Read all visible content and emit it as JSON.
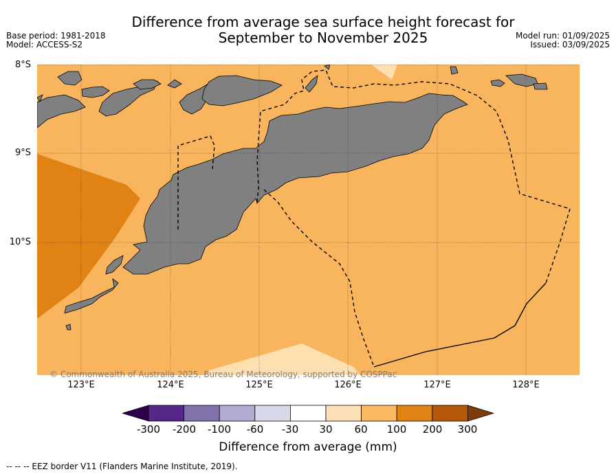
{
  "title": {
    "line1": "Difference from average sea surface height forecast for",
    "line2": "September to November 2025"
  },
  "meta_left": {
    "base_period": "Base period: 1981-2018",
    "model": "Model: ACCESS-S2"
  },
  "meta_right": {
    "model_run": "Model run: 01/09/2025",
    "issued": "Issued: 03/09/2025"
  },
  "map": {
    "lat_labels": [
      "8°S",
      "9°S",
      "10°S"
    ],
    "lon_labels": [
      "123°E",
      "124°E",
      "125°E",
      "126°E",
      "127°E",
      "128°E"
    ],
    "copyright": "© Commonwealth of Australia 2025, Bureau of Meteorology, supported by COSPPac",
    "colors": {
      "band_60_100": "#f9b45e",
      "band_100_200": "#e08214",
      "band_30_60": "#fedfb0",
      "land": "#808080",
      "eez_line": "#000000"
    }
  },
  "colorbar": {
    "ticks": [
      "-300",
      "-200",
      "-100",
      "-60",
      "-30",
      "30",
      "60",
      "100",
      "200",
      "300"
    ],
    "colors": [
      "#2d004b",
      "#542788",
      "#8073ac",
      "#b2abd2",
      "#d8daeb",
      "#ffffff",
      "#fee0b6",
      "#fdb863",
      "#e08214",
      "#b35806",
      "#7f3b08"
    ],
    "label": "Difference from average (mm)"
  },
  "footnote": "-- -- -- EEZ border V11 (Flanders Marine Institute, 2019)."
}
